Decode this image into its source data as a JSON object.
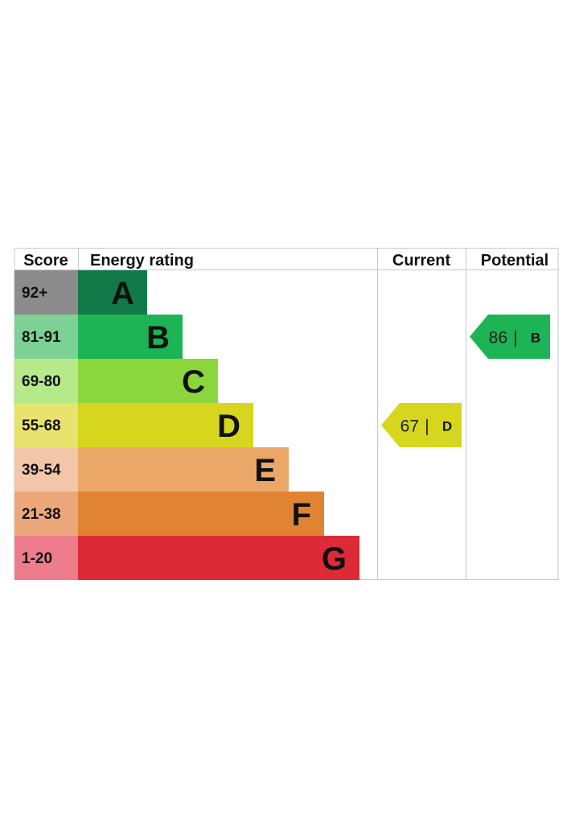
{
  "chart_data": {
    "type": "table",
    "headers": {
      "score": "Score",
      "energy_rating": "Energy rating",
      "current": "Current",
      "potential": "Potential"
    },
    "bands": [
      {
        "letter": "A",
        "range": "92+",
        "bar_color": "#127a48",
        "score_color": "#8c8c8c"
      },
      {
        "letter": "B",
        "range": "81-91",
        "bar_color": "#1db455",
        "score_color": "#7dd194"
      },
      {
        "letter": "C",
        "range": "69-80",
        "bar_color": "#8ad63c",
        "score_color": "#b6e98a"
      },
      {
        "letter": "D",
        "range": "55-68",
        "bar_color": "#d6d61f",
        "score_color": "#e8e36e"
      },
      {
        "letter": "E",
        "range": "39-54",
        "bar_color": "#eba767",
        "score_color": "#f3c6aa"
      },
      {
        "letter": "F",
        "range": "21-38",
        "bar_color": "#e08434",
        "score_color": "#eba77a"
      },
      {
        "letter": "G",
        "range": "1-20",
        "bar_color": "#dc2a37",
        "score_color": "#ed7d8c"
      }
    ],
    "current": {
      "value": 67,
      "separator": "|",
      "letter": "D",
      "color": "#d6d61f"
    },
    "potential": {
      "value": 86,
      "separator": "|",
      "letter": "B",
      "color": "#1db455"
    }
  }
}
